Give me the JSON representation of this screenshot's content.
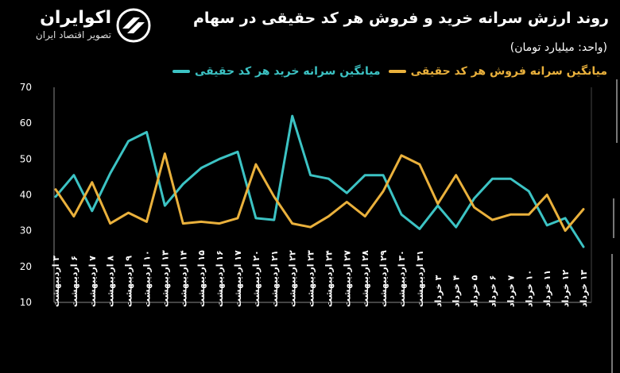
{
  "brand": {
    "name": "اکوایران",
    "tagline": "تصویر اقتصاد ایران"
  },
  "header": {
    "title": "روند ارزش سرانه خرید و فروش هر کد حقیقی در سهام",
    "unit": "(واحد: میلیارد تومان)"
  },
  "colors": {
    "buy": "#3cc3c4",
    "sell": "#eab13c",
    "background": "#000000",
    "grid": "#444444"
  },
  "chart_data": {
    "type": "line",
    "title": "روند ارزش سرانه خرید و فروش هر کد حقیقی در سهام",
    "ylabel": "(واحد: میلیارد تومان)",
    "xlabel": "",
    "ylim": [
      10,
      70
    ],
    "yticks": [
      10,
      20,
      30,
      40,
      50,
      60,
      70
    ],
    "grid": false,
    "legend_position": "top-right",
    "categories": [
      "۳ اردیبهشت",
      "۶ اردیبهشت",
      "۷ اردیبهشت",
      "۸ اردیبهشت",
      "۹ اردیبهشت",
      "۱۰ اردیبهشت",
      "۱۳ اردیبهشت",
      "۱۴ اردیبهشت",
      "۱۵ اردیبهشت",
      "۱۶ اردیبهشت",
      "۱۷ اردیبهشت",
      "۲۰ اردیبهشت",
      "۲۱ اردیبهشت",
      "۲۲ اردیبهشت",
      "۲۳ اردیبهشت",
      "۲۴ اردیبهشت",
      "۲۷ اردیبهشت",
      "۲۸ اردیبهشت",
      "۲۹ اردیبهشت",
      "۳۰ اردیبهشت",
      "۳۱ اردیبهشت",
      "۳ خرداد",
      "۴ خرداد",
      "۵ خرداد",
      "۶ خرداد",
      "۷ خرداد",
      "۱۰ خرداد",
      "۱۱ خرداد",
      "۱۲ خرداد",
      "۱۳ خرداد"
    ],
    "series": [
      {
        "name": "میانگین سرانه خرید هر کد حقیقی",
        "color": "#3cc3c4",
        "values": [
          39.5,
          45.5,
          35.5,
          46,
          55,
          57.5,
          37,
          43,
          47.5,
          50,
          52,
          33.5,
          33,
          62,
          45.5,
          44.5,
          40.5,
          45.5,
          45.5,
          34.5,
          30.5,
          37,
          31,
          39,
          44.5,
          44.5,
          41,
          31.5,
          33.5,
          25.5
        ]
      },
      {
        "name": "میانگین سرانه فروش هر کد حقیقی",
        "color": "#eab13c",
        "values": [
          41.5,
          34,
          43.5,
          32,
          35,
          32.5,
          51.5,
          32,
          32.5,
          32,
          33.5,
          48.5,
          39.5,
          32,
          31,
          34,
          38,
          34,
          41,
          51,
          48.5,
          37.5,
          45.5,
          36.5,
          33,
          34.5,
          34.5,
          40,
          30,
          36
        ]
      }
    ]
  }
}
